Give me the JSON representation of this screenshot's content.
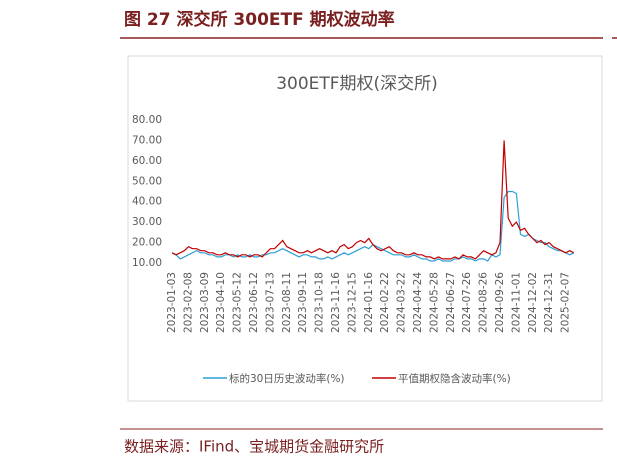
{
  "header": {
    "title": "图 27 深交所 300ETF 期权波动率"
  },
  "source": "数据来源：IFind、宝城期货金融研究所",
  "chart_data": {
    "type": "line",
    "title": "300ETF期权(深交所)",
    "categories": [
      "2023-01-03",
      null,
      null,
      null,
      "2023-02-08",
      null,
      null,
      null,
      "2023-03-09",
      null,
      null,
      null,
      "2023-04-10",
      null,
      null,
      null,
      "2023-05-12",
      null,
      null,
      null,
      "2023-06-12",
      null,
      null,
      null,
      "2023-07-13",
      null,
      null,
      null,
      "2023-08-11",
      null,
      null,
      null,
      "2023-09-11",
      null,
      null,
      null,
      "2023-10-18",
      null,
      null,
      null,
      "2023-11-16",
      null,
      null,
      null,
      "2023-12-15",
      null,
      null,
      null,
      "2024-01-16",
      null,
      null,
      null,
      "2024-02-22",
      null,
      null,
      null,
      "2024-03-22",
      null,
      null,
      null,
      "2024-04-24",
      null,
      null,
      null,
      "2024-05-28",
      null,
      null,
      null,
      "2024-06-27",
      null,
      null,
      null,
      "2024-07-26",
      null,
      null,
      null,
      "2024-08-26",
      null,
      null,
      null,
      "2024-09-26",
      null,
      null,
      null,
      "2024-11-01",
      null,
      null,
      null,
      "2024-12-02",
      null,
      null,
      null,
      "2024-12-31",
      null,
      null,
      null,
      "2025-02-07",
      null,
      null
    ],
    "series": [
      {
        "name": "标的30日历史波动率(%)",
        "color": "#2e9fd6",
        "values": [
          15,
          14,
          12,
          13,
          14,
          15,
          16,
          15,
          15,
          14,
          14,
          13,
          13,
          14,
          14,
          13,
          14,
          13,
          13,
          14,
          13,
          13,
          14,
          14,
          15,
          15,
          16,
          17,
          16,
          15,
          14,
          13,
          14,
          14,
          13,
          13,
          12,
          12,
          13,
          12,
          13,
          14,
          15,
          14,
          15,
          16,
          17,
          18,
          17,
          19,
          18,
          17,
          16,
          15,
          14,
          14,
          14,
          13,
          13,
          14,
          13,
          12,
          12,
          11,
          11,
          12,
          11,
          11,
          11,
          12,
          12,
          13,
          12,
          12,
          11,
          12,
          12,
          11,
          14,
          13,
          14,
          42,
          45,
          45,
          44,
          24,
          23,
          24,
          22,
          21,
          20,
          20,
          18,
          17,
          16,
          16,
          15,
          14,
          15
        ]
      },
      {
        "name": "平值期权隐含波动率(%)",
        "color": "#c00000",
        "values": [
          15,
          14,
          15,
          16,
          18,
          17,
          17,
          16,
          16,
          15,
          15,
          14,
          14,
          15,
          14,
          14,
          13,
          14,
          14,
          13,
          14,
          14,
          13,
          15,
          17,
          17,
          19,
          21,
          18,
          17,
          16,
          15,
          15,
          16,
          15,
          16,
          17,
          16,
          15,
          16,
          15,
          18,
          19,
          17,
          18,
          20,
          21,
          20,
          22,
          19,
          17,
          16,
          17,
          18,
          16,
          15,
          15,
          14,
          14,
          15,
          14,
          14,
          13,
          13,
          12,
          13,
          12,
          12,
          12,
          13,
          12,
          14,
          13,
          13,
          12,
          14,
          16,
          15,
          14,
          15,
          20,
          70,
          32,
          28,
          30,
          26,
          27,
          24,
          22,
          20,
          21,
          19,
          20,
          18,
          17,
          16,
          15,
          16,
          15
        ]
      }
    ],
    "ylim": [
      10,
      80
    ],
    "yticks": [
      {
        "value": 10,
        "label": "10.00"
      },
      {
        "value": 20,
        "label": "20.00"
      },
      {
        "value": 30,
        "label": "30.00"
      },
      {
        "value": 40,
        "label": "40.00"
      },
      {
        "value": 50,
        "label": "50.00"
      },
      {
        "value": 60,
        "label": "60.00"
      },
      {
        "value": 70,
        "label": "70.00"
      },
      {
        "value": 80,
        "label": "80.00"
      }
    ],
    "legend": "bottom",
    "grid": false
  }
}
